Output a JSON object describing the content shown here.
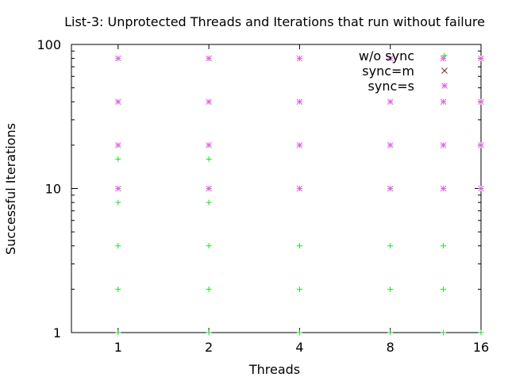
{
  "chart_data": {
    "type": "scatter",
    "title": "List-3: Unprotected Threads and Iterations that run without failure",
    "xlabel": "Threads",
    "ylabel": "Successful Iterations",
    "xscale": "log2",
    "yscale": "log10",
    "xlim": [
      0.7,
      16
    ],
    "ylim": [
      1,
      100
    ],
    "x_ticks": [
      1,
      2,
      4,
      8,
      16
    ],
    "x_tick_labels": [
      "1",
      "2",
      "4",
      "8",
      "16"
    ],
    "y_ticks": [
      1,
      10,
      100
    ],
    "y_tick_labels": [
      "1",
      "10",
      "100"
    ],
    "grid": false,
    "legend_position": "top-right",
    "series": [
      {
        "name": "w/o sync",
        "marker": "plus",
        "color": "#22dd22",
        "points": [
          [
            1,
            1
          ],
          [
            1,
            2
          ],
          [
            1,
            4
          ],
          [
            1,
            8
          ],
          [
            1,
            16
          ],
          [
            2,
            1
          ],
          [
            2,
            2
          ],
          [
            2,
            4
          ],
          [
            2,
            8
          ],
          [
            2,
            16
          ],
          [
            4,
            1
          ],
          [
            4,
            2
          ],
          [
            4,
            4
          ],
          [
            8,
            1
          ],
          [
            8,
            2
          ],
          [
            8,
            4
          ],
          [
            12,
            1
          ],
          [
            12,
            2
          ],
          [
            12,
            4
          ],
          [
            16,
            1
          ]
        ]
      },
      {
        "name": "sync=m",
        "marker": "cross",
        "color": "#882222",
        "points": []
      },
      {
        "name": "sync=s",
        "marker": "star",
        "color": "#dd66dd",
        "points": [
          [
            1,
            10
          ],
          [
            1,
            20
          ],
          [
            1,
            40
          ],
          [
            1,
            80
          ],
          [
            2,
            10
          ],
          [
            2,
            20
          ],
          [
            2,
            40
          ],
          [
            2,
            80
          ],
          [
            4,
            10
          ],
          [
            4,
            20
          ],
          [
            4,
            40
          ],
          [
            4,
            80
          ],
          [
            8,
            10
          ],
          [
            8,
            20
          ],
          [
            8,
            40
          ],
          [
            8,
            80
          ],
          [
            12,
            10
          ],
          [
            12,
            20
          ],
          [
            12,
            40
          ],
          [
            12,
            80
          ],
          [
            16,
            10
          ],
          [
            16,
            20
          ],
          [
            16,
            40
          ],
          [
            16,
            80
          ]
        ]
      }
    ]
  }
}
